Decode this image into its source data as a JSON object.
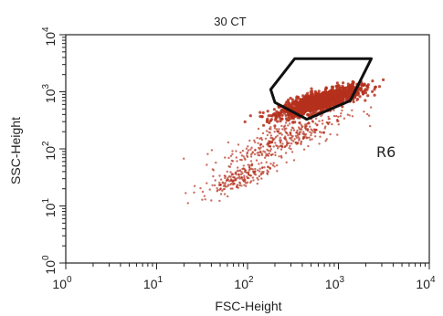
{
  "chart_data": {
    "type": "scatter",
    "title": "30 CT",
    "xlabel": "FSC-Height",
    "ylabel": "SSC-Height",
    "x_scale": "log",
    "y_scale": "log",
    "xlim": [
      1,
      10000
    ],
    "ylim": [
      1,
      10000
    ],
    "x_ticks": [
      {
        "value": 1,
        "base": "10",
        "exp": "0"
      },
      {
        "value": 10,
        "base": "10",
        "exp": "1"
      },
      {
        "value": 100,
        "base": "10",
        "exp": "2"
      },
      {
        "value": 1000,
        "base": "10",
        "exp": "3"
      },
      {
        "value": 10000,
        "base": "10",
        "exp": "4"
      }
    ],
    "y_ticks": [
      {
        "value": 1,
        "base": "10",
        "exp": "0"
      },
      {
        "value": 10,
        "base": "10",
        "exp": "1"
      },
      {
        "value": 100,
        "base": "10",
        "exp": "2"
      },
      {
        "value": 1000,
        "base": "10",
        "exp": "3"
      },
      {
        "value": 10000,
        "base": "10",
        "exp": "4"
      }
    ],
    "grid": false,
    "point_color": "#b5301c",
    "gate_color": "#111111",
    "clusters": [
      {
        "center": [
          630,
          680
        ],
        "spread_decades": [
          0.22,
          0.18
        ],
        "count": 1500
      },
      {
        "center": [
          260,
          150
        ],
        "spread_decades": [
          0.33,
          0.38
        ],
        "count": 380
      },
      {
        "center": [
          80,
          30
        ],
        "spread_decades": [
          0.2,
          0.2
        ],
        "count": 180
      }
    ],
    "gate": {
      "name": "R6",
      "vertices": [
        [
          330,
          3800
        ],
        [
          2300,
          3800
        ],
        [
          1350,
          700
        ],
        [
          450,
          330
        ],
        [
          200,
          650
        ],
        [
          180,
          1100
        ]
      ]
    }
  }
}
